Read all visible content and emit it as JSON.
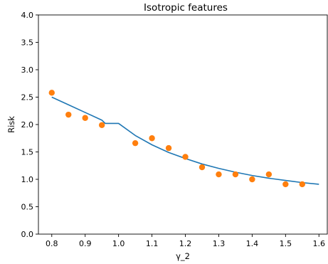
{
  "chart_data": {
    "type": "line",
    "title": "Isotropic features",
    "xlabel": "γ_2",
    "ylabel": "Risk",
    "xlim": [
      0.76,
      1.625
    ],
    "ylim": [
      0.0,
      4.0
    ],
    "xticks": [
      0.8,
      0.9,
      1.0,
      1.1,
      1.2,
      1.3,
      1.4,
      1.5,
      1.6
    ],
    "xtick_labels": [
      "0.8",
      "0.9",
      "1.0",
      "1.1",
      "1.2",
      "1.3",
      "1.4",
      "1.5",
      "1.6"
    ],
    "yticks": [
      0.0,
      0.5,
      1.0,
      1.5,
      2.0,
      2.5,
      3.0,
      3.5,
      4.0
    ],
    "ytick_labels": [
      "0.0",
      "0.5",
      "1.0",
      "1.5",
      "2.0",
      "2.5",
      "3.0",
      "3.5",
      "4.0"
    ],
    "grid": false,
    "legend": "none",
    "series": [
      {
        "type": "line",
        "color": "#1f77b4",
        "x": [
          0.8,
          0.85,
          0.9,
          0.95,
          0.96,
          1.0,
          1.05,
          1.1,
          1.15,
          1.2,
          1.25,
          1.3,
          1.35,
          1.4,
          1.45,
          1.5,
          1.55,
          1.6
        ],
        "y": [
          2.5,
          2.36,
          2.22,
          2.08,
          2.02,
          2.02,
          1.8,
          1.63,
          1.49,
          1.38,
          1.28,
          1.2,
          1.13,
          1.07,
          1.02,
          0.98,
          0.94,
          0.91
        ]
      },
      {
        "type": "scatter",
        "color": "#ff7f0e",
        "x": [
          0.8,
          0.85,
          0.9,
          0.95,
          1.05,
          1.1,
          1.15,
          1.2,
          1.25,
          1.3,
          1.35,
          1.4,
          1.45,
          1.5,
          1.55
        ],
        "y": [
          2.58,
          2.18,
          2.12,
          1.99,
          1.66,
          1.75,
          1.57,
          1.41,
          1.22,
          1.09,
          1.09,
          1.0,
          1.09,
          0.91,
          0.91
        ]
      }
    ]
  }
}
